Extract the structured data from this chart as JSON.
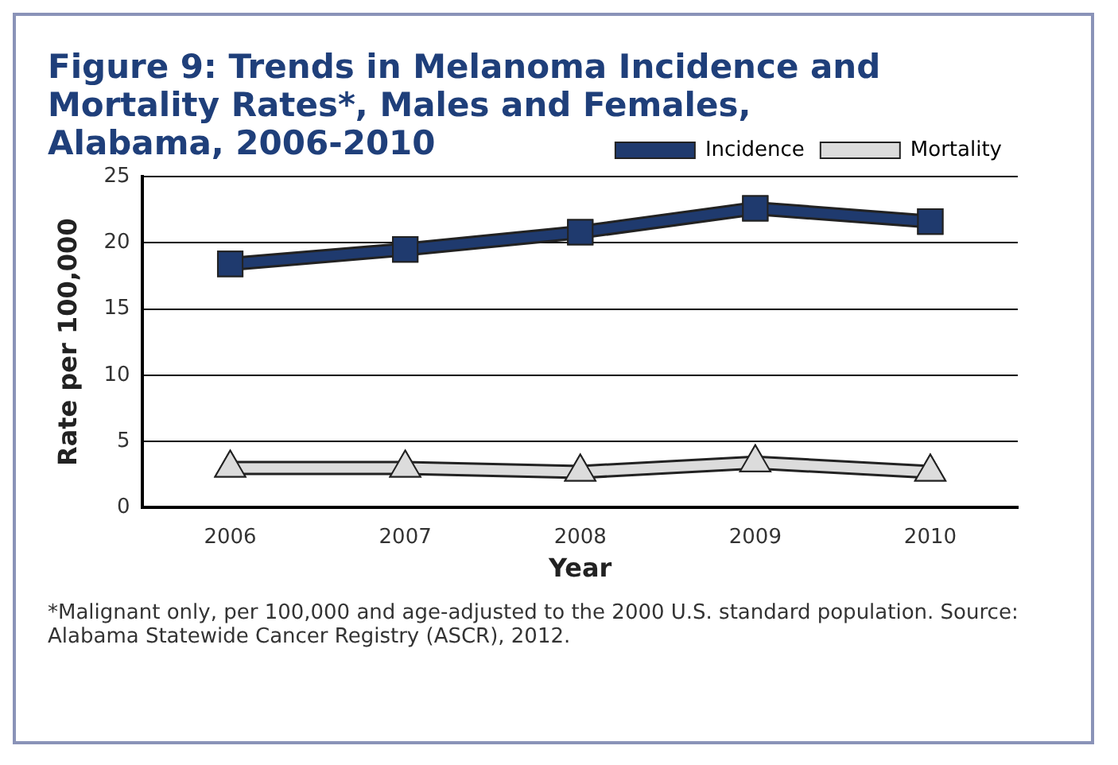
{
  "chart_data": {
    "type": "line",
    "title": "Figure 9: Trends in Melanoma Incidence and Mortality Rates*, Males and Females, Alabama, 2006-2010",
    "xlabel": "Year",
    "ylabel": "Rate per 100,000",
    "categories": [
      "2006",
      "2007",
      "2008",
      "2009",
      "2010"
    ],
    "series": [
      {
        "name": "Incidence",
        "color": "#1f3a6e",
        "marker": "square",
        "values": [
          18.4,
          19.5,
          20.8,
          22.6,
          21.6
        ]
      },
      {
        "name": "Mortality",
        "color": "#dcdcdc",
        "marker": "triangle",
        "values": [
          3.0,
          3.0,
          2.7,
          3.4,
          2.7
        ]
      }
    ],
    "ylim": [
      0,
      25
    ],
    "yticks": [
      0,
      5,
      10,
      15,
      20,
      25
    ],
    "grid": "y",
    "legend": "top right",
    "annotations": [
      "*Malignant only, per 100,000 and age-adjusted to the 2000 U.S. standard population.  Source: Alabama Statewide Cancer Registry (ASCR), 2012."
    ]
  }
}
